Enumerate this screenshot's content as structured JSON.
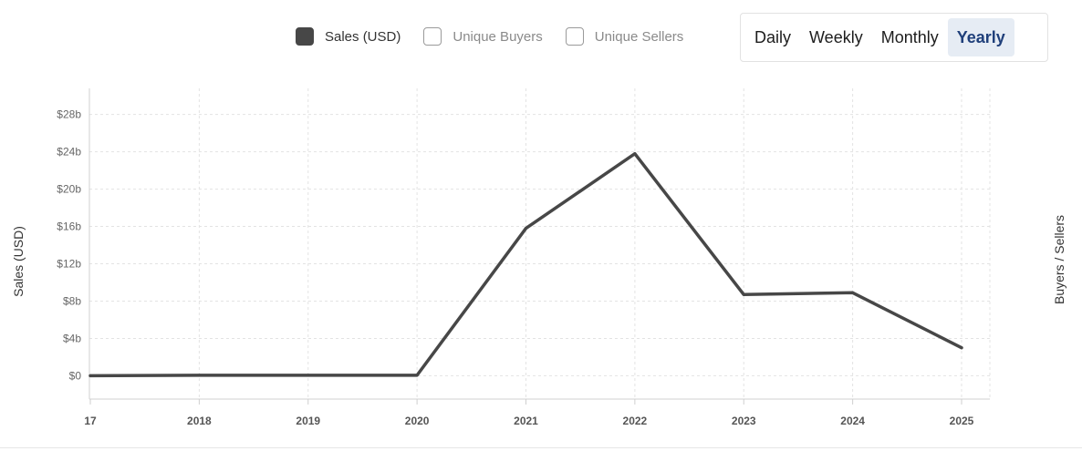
{
  "legend": [
    {
      "label": "Sales (USD)",
      "checked": true
    },
    {
      "label": "Unique Buyers",
      "checked": false
    },
    {
      "label": "Unique Sellers",
      "checked": false
    }
  ],
  "periods": [
    {
      "label": "Daily",
      "active": false
    },
    {
      "label": "Weekly",
      "active": false
    },
    {
      "label": "Monthly",
      "active": false
    },
    {
      "label": "Yearly",
      "active": true
    }
  ],
  "colors": {
    "line": "#474747",
    "active_tab_bg": "#e6ecf4",
    "active_tab_text": "#1f3f7a"
  },
  "chart_data": {
    "type": "line",
    "categories": [
      "17",
      "2018",
      "2019",
      "2020",
      "2021",
      "2022",
      "2023",
      "2024",
      "2025"
    ],
    "series": [
      {
        "name": "Sales (USD)",
        "values": [
          0.0,
          0.05,
          0.05,
          0.05,
          15.8,
          23.8,
          8.7,
          8.9,
          3.0
        ]
      }
    ],
    "ylabel": "Sales (USD)",
    "y2label": "Buyers / Sellers",
    "ylim": [
      -2.5,
      30.8
    ],
    "yticks": [
      0,
      4,
      8,
      12,
      16,
      20,
      24,
      28
    ],
    "ytick_labels": [
      "$0",
      "$4b",
      "$8b",
      "$12b",
      "$16b",
      "$20b",
      "$24b",
      "$28b"
    ],
    "units": "billions USD",
    "grid": true
  }
}
